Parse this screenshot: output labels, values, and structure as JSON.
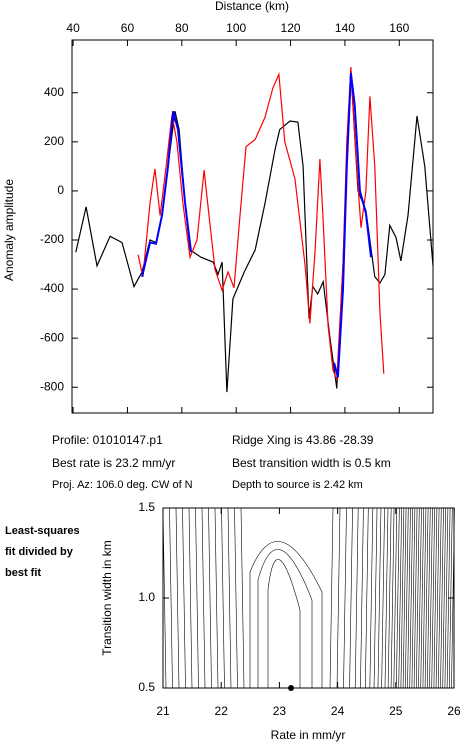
{
  "chart_data": [
    {
      "type": "line",
      "xlabel": "Distance (km)",
      "ylabel": "Anomaly amplitude",
      "xlim": [
        39.6,
        172.4
      ],
      "xticks": [
        40,
        60,
        80,
        100,
        120,
        140,
        160
      ],
      "ylim": [
        -905,
        615
      ],
      "yticks": [
        -800,
        -600,
        -400,
        -200,
        0,
        200,
        400
      ],
      "series": [
        {
          "color": "#000000",
          "x": [
            41,
            44.8,
            48.8,
            53.6,
            58,
            62.4,
            65.4,
            68.3,
            70.5,
            72.7,
            74.9,
            77.5,
            79,
            81.2,
            83,
            87,
            91.5,
            93.3,
            94.8,
            96.6,
            98.8,
            103,
            107,
            110.6,
            114.3,
            116,
            119.8,
            122.7,
            124.6,
            126.8,
            128.2,
            130,
            132,
            134.5,
            137,
            139.3,
            140.7,
            142.2,
            144.8,
            147.7,
            151,
            152.9,
            154.7,
            156.5,
            158.8,
            160.6,
            163.2,
            166.5,
            169.4,
            172.4
          ],
          "values": [
            -250,
            -65,
            -305,
            -185,
            -210,
            -390,
            -330,
            -200,
            -210,
            -100,
            100,
            325,
            250,
            -50,
            -240,
            -270,
            -290,
            -340,
            -290,
            -820,
            -440,
            -330,
            -240,
            -50,
            170,
            250,
            285,
            280,
            100,
            -520,
            -390,
            -420,
            -370,
            -600,
            -805,
            -300,
            100,
            490,
            0,
            -80,
            -350,
            -375,
            -340,
            -140,
            -190,
            -285,
            -100,
            305,
            100,
            -305
          ]
        },
        {
          "color": "#ff0000",
          "x": [
            63.9,
            65.7,
            68.3,
            70.1,
            72,
            74.2,
            76.4,
            78.2,
            80.4,
            83,
            85.6,
            88.2,
            90,
            92.2,
            94.8,
            97,
            99.2,
            101.4,
            103.6,
            107,
            110.6,
            113.5,
            115.7,
            117.9,
            121.6,
            125.3,
            127.1,
            129,
            130.8,
            131.9,
            133.8,
            135.6,
            137,
            139.3,
            140.7,
            142.2,
            144,
            145.9,
            147.7,
            149.2,
            151,
            152.9,
            154.3
          ],
          "values": [
            -260,
            -350,
            -50,
            90,
            -100,
            100,
            310,
            200,
            -50,
            -270,
            -200,
            85,
            -100,
            -320,
            -405,
            -330,
            -395,
            -100,
            180,
            210,
            300,
            420,
            475,
            200,
            50,
            -300,
            -540,
            -250,
            130,
            -100,
            -550,
            -730,
            -770,
            -300,
            200,
            505,
            150,
            -150,
            0,
            385,
            100,
            -500,
            -745
          ]
        },
        {
          "color": "#0000ff",
          "x": [
            65.4,
            68.3,
            70.5,
            72.7,
            74.9,
            76.8,
            78.6,
            81.2,
            83.4,
            110,
            136,
            137.4,
            139.3,
            140.7,
            142.2,
            143.6,
            145.5,
            147.7,
            149.6
          ],
          "values": [
            -350,
            -210,
            -215,
            -100,
            100,
            325,
            250,
            -50,
            -250,
            null,
            -700,
            -760,
            -400,
            100,
            480,
            350,
            0,
            -90,
            -270
          ]
        }
      ],
      "annotations": [
        "Profile: 01010147.p1",
        "Ridge Xing is 43.86 -28.39",
        "Best rate is 23.2 mm/yr",
        "Best transition width is 0.5 km",
        "Proj. Az: 106.0 deg. CW of N",
        "Depth to source is   2.42 km"
      ]
    },
    {
      "type": "contour",
      "xlabel": "Rate in mm/yr",
      "ylabel": "Transition width in km",
      "xlim": [
        21,
        26
      ],
      "xticks": [
        21,
        22,
        23,
        24,
        25,
        26
      ],
      "ylim": [
        0.5,
        1.5
      ],
      "yticks": [
        0.5,
        {
          "value": 1,
          "label": "1.0"
        },
        1.5
      ],
      "best_fit": [
        23.2,
        0.5
      ],
      "side_label": [
        "Least-squares",
        "fit divided by",
        "best fit"
      ]
    }
  ]
}
